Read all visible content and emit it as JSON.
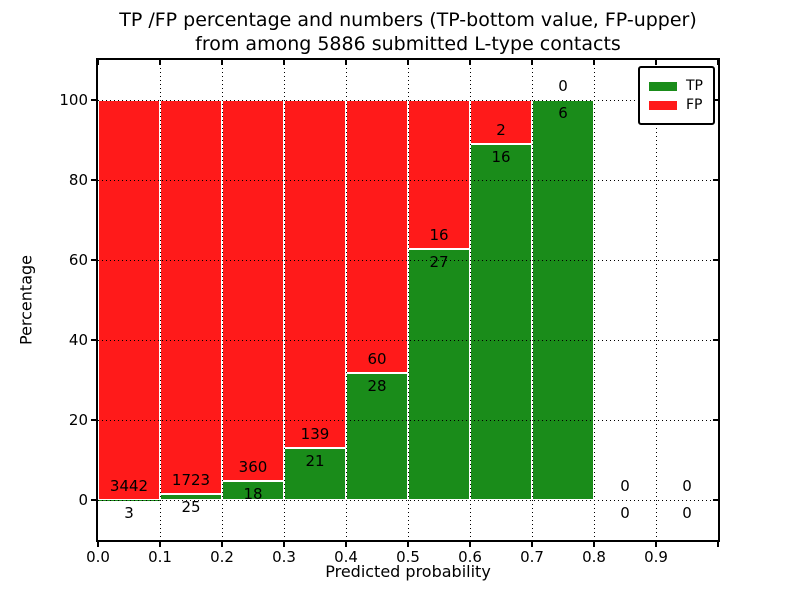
{
  "chart_data": {
    "type": "bar",
    "stacked": true,
    "orientation": "vertical",
    "title_lines": [
      "TP /FP percentage and numbers (TP-bottom value, FP-upper)",
      "from among 5886 submitted L-type contacts"
    ],
    "xlabel": "Predicted probability",
    "ylabel": "Percentage",
    "xlim": [
      0.0,
      1.0
    ],
    "ylim": [
      -10,
      110
    ],
    "xtick_labels": [
      "0.0",
      "0.1",
      "0.2",
      "0.3",
      "0.4",
      "0.5",
      "0.6",
      "0.7",
      "0.8",
      "0.9"
    ],
    "ytick_values": [
      0,
      20,
      40,
      60,
      80,
      100
    ],
    "grid": {
      "style": "dotted",
      "color": "#000000"
    },
    "bin_width": 0.1,
    "bin_starts": [
      0.0,
      0.1,
      0.2,
      0.3,
      0.4,
      0.5,
      0.6,
      0.7,
      0.8,
      0.9
    ],
    "series": [
      {
        "name": "TP",
        "color": "#1a8c1a",
        "values": [
          3,
          25,
          18,
          21,
          28,
          27,
          16,
          6,
          0,
          0
        ]
      },
      {
        "name": "FP",
        "color": "#ff1a1a",
        "values": [
          3442,
          1723,
          360,
          139,
          60,
          16,
          2,
          0,
          0,
          0
        ]
      }
    ],
    "tp_percent_of_bin": [
      0.09,
      1.43,
      4.76,
      13.13,
      31.82,
      62.79,
      88.89,
      100.0,
      null,
      null
    ],
    "total_contacts": 5886,
    "bar_edge_color": "#ffffff",
    "legend": {
      "position": "upper-right",
      "entries": [
        {
          "label": "TP",
          "color": "#1a8c1a"
        },
        {
          "label": "FP",
          "color": "#ff1a1a"
        }
      ]
    }
  },
  "colors": {
    "background": "#ffffff",
    "axis": "#000000",
    "text": "#000000"
  }
}
